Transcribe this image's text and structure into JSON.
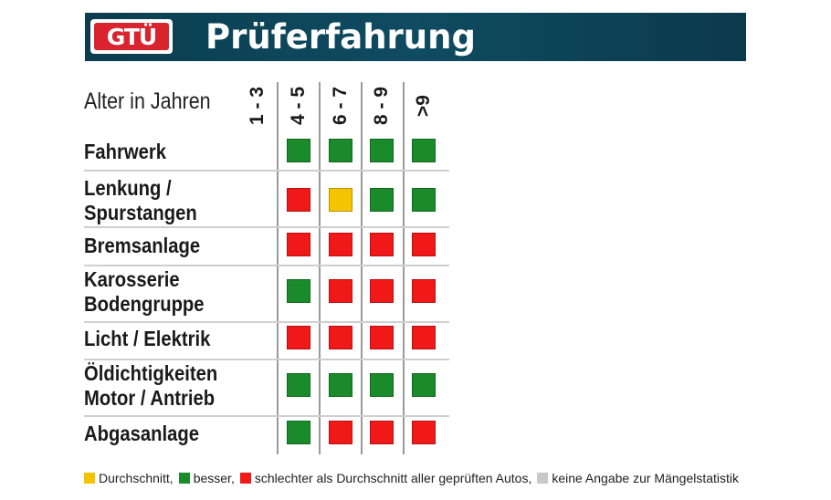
{
  "header": {
    "logo_text": "GTÜ",
    "title": "Prüferfahrung"
  },
  "colors": {
    "header_bg": "#0f4b61",
    "logo_red": "#d9232e",
    "green": "#1a8a2a",
    "red": "#f01818",
    "yellow": "#f5c400",
    "gray": "#c8c8c8"
  },
  "chart_data": {
    "type": "table",
    "row_header": "Alter in Jahren",
    "columns": [
      "1 - 3",
      "4 - 5",
      "6 - 7",
      "8 - 9",
      ">9"
    ],
    "rows": [
      {
        "lines": [
          "Fahrwerk"
        ],
        "values": [
          null,
          "besser",
          "besser",
          "besser",
          "besser"
        ]
      },
      {
        "lines": [
          "Lenkung /",
          "Spurstangen"
        ],
        "values": [
          null,
          "schlechter",
          "durchschnitt",
          "besser",
          "besser"
        ]
      },
      {
        "lines": [
          "Bremsanlage"
        ],
        "values": [
          null,
          "schlechter",
          "schlechter",
          "schlechter",
          "schlechter"
        ]
      },
      {
        "lines": [
          "Karosserie",
          "Bodengruppe"
        ],
        "values": [
          null,
          "besser",
          "schlechter",
          "schlechter",
          "schlechter"
        ]
      },
      {
        "lines": [
          "Licht / Elektrik"
        ],
        "values": [
          null,
          "schlechter",
          "schlechter",
          "schlechter",
          "schlechter"
        ]
      },
      {
        "lines": [
          "Öldichtigkeiten",
          "Motor / Antrieb"
        ],
        "values": [
          null,
          "besser",
          "besser",
          "besser",
          "besser"
        ]
      },
      {
        "lines": [
          "Abgasanlage"
        ],
        "values": [
          null,
          "besser",
          "schlechter",
          "schlechter",
          "schlechter"
        ]
      }
    ],
    "legend": [
      {
        "key": "durchschnitt",
        "label": "Durchschnitt,",
        "color": "#f5c400"
      },
      {
        "key": "besser",
        "label": "besser,",
        "color": "#1a8a2a"
      },
      {
        "key": "schlechter",
        "label": "schlechter als Durchschnitt aller geprüften Autos,",
        "color": "#f01818"
      },
      {
        "key": "keine",
        "label": "keine Angabe zur Mängelstatistik",
        "color": "#c8c8c8"
      }
    ]
  }
}
